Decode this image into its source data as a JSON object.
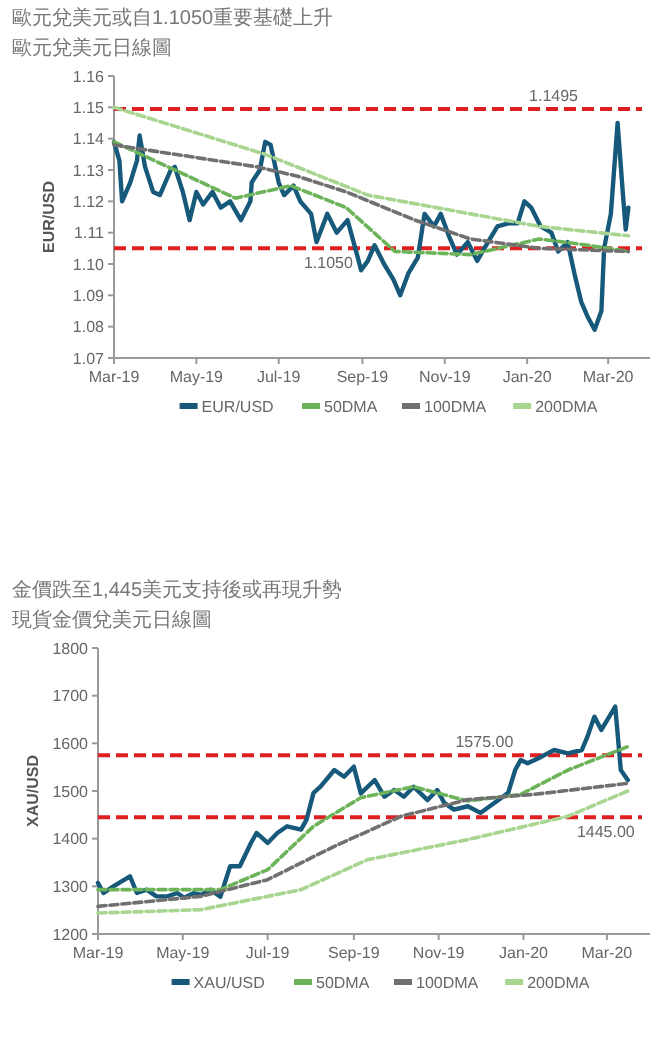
{
  "chart_data": [
    {
      "type": "line",
      "title": "歐元兌美元或自1.1050重要基礎上升",
      "subtitle": "歐元兌美元日線圖",
      "ylabel": "EUR/USD",
      "xlim": [
        "2019-03-01",
        "2020-04-01"
      ],
      "xticks": [
        {
          "value": "2019-03-01",
          "label": "Mar-19"
        },
        {
          "value": "2019-05-01",
          "label": "May-19"
        },
        {
          "value": "2019-07-01",
          "label": "Jul-19"
        },
        {
          "value": "2019-09-01",
          "label": "Sep-19"
        },
        {
          "value": "2019-11-01",
          "label": "Nov-19"
        },
        {
          "value": "2020-01-01",
          "label": "Jan-20"
        },
        {
          "value": "2020-03-01",
          "label": "Mar-20"
        }
      ],
      "ylim": [
        1.07,
        1.16
      ],
      "yticks": [
        {
          "value": 1.07,
          "label": "1.07"
        },
        {
          "value": 1.08,
          "label": "1.08"
        },
        {
          "value": 1.09,
          "label": "1.09"
        },
        {
          "value": 1.1,
          "label": "1.10"
        },
        {
          "value": 1.11,
          "label": "1.11"
        },
        {
          "value": 1.12,
          "label": "1.12"
        },
        {
          "value": 1.13,
          "label": "1.13"
        },
        {
          "value": 1.14,
          "label": "1.14"
        },
        {
          "value": 1.15,
          "label": "1.15"
        },
        {
          "value": 1.16,
          "label": "1.16"
        }
      ],
      "grid": false,
      "legend": "bottom",
      "ref_lines": [
        {
          "axis": "y",
          "value": 1.1495,
          "label": "1.1495",
          "color": "#e02020",
          "line_style": "dashed"
        },
        {
          "axis": "y",
          "value": 1.105,
          "label": "1.1050",
          "color": "#e02020",
          "line_style": "dashed"
        }
      ],
      "series": [
        {
          "name": "EUR/USD",
          "color": "#17597a",
          "line_style": "solid",
          "x": [
            "2019-03-01",
            "2019-03-05",
            "2019-03-07",
            "2019-03-13",
            "2019-03-18",
            "2019-03-20",
            "2019-03-24",
            "2019-03-30",
            "2019-04-04",
            "2019-04-12",
            "2019-04-15",
            "2019-04-21",
            "2019-04-26",
            "2019-05-01",
            "2019-05-06",
            "2019-05-13",
            "2019-05-19",
            "2019-05-26",
            "2019-06-03",
            "2019-06-10",
            "2019-06-11",
            "2019-06-17",
            "2019-06-21",
            "2019-06-25",
            "2019-07-01",
            "2019-07-05",
            "2019-07-12",
            "2019-07-17",
            "2019-07-25",
            "2019-07-29",
            "2019-08-06",
            "2019-08-13",
            "2019-08-21",
            "2019-08-28",
            "2019-08-31",
            "2019-09-05",
            "2019-09-10",
            "2019-09-17",
            "2019-09-24",
            "2019-09-29",
            "2019-10-05",
            "2019-10-12",
            "2019-10-17",
            "2019-10-24",
            "2019-10-29",
            "2019-11-04",
            "2019-11-10",
            "2019-11-18",
            "2019-11-25",
            "2019-12-03",
            "2019-12-10",
            "2019-12-18",
            "2019-12-25",
            "2019-12-30",
            "2020-01-04",
            "2020-01-11",
            "2020-01-19",
            "2020-01-24",
            "2020-01-31",
            "2020-02-05",
            "2020-02-10",
            "2020-02-15",
            "2020-02-20",
            "2020-02-25",
            "2020-02-27",
            "2020-03-03",
            "2020-03-08",
            "2020-03-12",
            "2020-03-14",
            "2020-03-16"
          ],
          "values": [
            1.139,
            1.133,
            1.12,
            1.126,
            1.133,
            1.141,
            1.131,
            1.123,
            1.122,
            1.13,
            1.131,
            1.123,
            1.114,
            1.123,
            1.119,
            1.123,
            1.118,
            1.12,
            1.114,
            1.12,
            1.126,
            1.13,
            1.139,
            1.138,
            1.126,
            1.122,
            1.125,
            1.12,
            1.116,
            1.107,
            1.116,
            1.11,
            1.114,
            1.103,
            1.098,
            1.101,
            1.106,
            1.1,
            1.095,
            1.09,
            1.097,
            1.102,
            1.116,
            1.112,
            1.116,
            1.109,
            1.103,
            1.107,
            1.101,
            1.107,
            1.112,
            1.113,
            1.113,
            1.12,
            1.118,
            1.112,
            1.11,
            1.104,
            1.107,
            1.097,
            1.088,
            1.083,
            1.079,
            1.085,
            1.105,
            1.116,
            1.145,
            1.122,
            1.111,
            1.118
          ]
        },
        {
          "name": "50DMA",
          "color": "#6db35a",
          "line_style": "dashed",
          "x": [
            "2019-03-01",
            "2019-05-30",
            "2019-07-10",
            "2019-08-20",
            "2019-09-25",
            "2019-11-20",
            "2020-01-10",
            "2020-02-15",
            "2020-03-16"
          ],
          "values": [
            1.139,
            1.121,
            1.125,
            1.118,
            1.104,
            1.103,
            1.108,
            1.106,
            1.104
          ]
        },
        {
          "name": "100DMA",
          "color": "#707070",
          "line_style": "dashed",
          "x": [
            "2019-03-01",
            "2019-06-15",
            "2019-07-15",
            "2019-08-20",
            "2019-10-10",
            "2019-11-20",
            "2020-01-10",
            "2020-03-16"
          ],
          "values": [
            1.138,
            1.131,
            1.128,
            1.123,
            1.114,
            1.108,
            1.105,
            1.104
          ]
        },
        {
          "name": "200DMA",
          "color": "#a8d590",
          "line_style": "dashed",
          "x": [
            "2019-03-01",
            "2019-06-21",
            "2019-09-05",
            "2019-11-20",
            "2020-01-10",
            "2020-03-16"
          ],
          "values": [
            1.15,
            1.135,
            1.122,
            1.116,
            1.112,
            1.109
          ]
        }
      ]
    },
    {
      "type": "line",
      "title": "金價跌至1,445美元支持後或再現升勢",
      "subtitle": "現貨金價兌美元日線圖",
      "ylabel": "XAU/USD",
      "xlim": [
        "2019-03-01",
        "2020-04-01"
      ],
      "xticks": [
        {
          "value": "2019-03-01",
          "label": "Mar-19"
        },
        {
          "value": "2019-05-01",
          "label": "May-19"
        },
        {
          "value": "2019-07-01",
          "label": "Jul-19"
        },
        {
          "value": "2019-09-01",
          "label": "Sep-19"
        },
        {
          "value": "2019-11-01",
          "label": "Nov-19"
        },
        {
          "value": "2020-01-01",
          "label": "Jan-20"
        },
        {
          "value": "2020-03-01",
          "label": "Mar-20"
        }
      ],
      "ylim": [
        1200,
        1800
      ],
      "yticks": [
        1200,
        1300,
        1400,
        1500,
        1600,
        1700,
        1800
      ],
      "grid": false,
      "legend": "bottom",
      "ref_lines": [
        {
          "axis": "y",
          "value": 1575,
          "label": "1575.00",
          "color": "#e02020",
          "line_style": "dashed"
        },
        {
          "axis": "y",
          "value": 1445,
          "label": "1445.00",
          "color": "#e02020",
          "line_style": "dashed"
        }
      ],
      "series": [
        {
          "name": "XAU/USD",
          "color": "#17597a",
          "line_style": "solid",
          "x": [
            "2019-03-01",
            "2019-03-05",
            "2019-03-12",
            "2019-03-24",
            "2019-03-29",
            "2019-04-05",
            "2019-04-12",
            "2019-04-20",
            "2019-04-27",
            "2019-05-02",
            "2019-05-09",
            "2019-05-14",
            "2019-05-21",
            "2019-05-28",
            "2019-06-04",
            "2019-06-11",
            "2019-06-19",
            "2019-06-23",
            "2019-07-01",
            "2019-07-08",
            "2019-07-15",
            "2019-07-25",
            "2019-07-29",
            "2019-08-03",
            "2019-08-08",
            "2019-08-18",
            "2019-08-25",
            "2019-09-01",
            "2019-09-06",
            "2019-09-16",
            "2019-09-23",
            "2019-09-30",
            "2019-10-07",
            "2019-10-14",
            "2019-10-24",
            "2019-10-31",
            "2019-11-05",
            "2019-11-12",
            "2019-11-22",
            "2019-12-01",
            "2019-12-11",
            "2019-12-21",
            "2019-12-26",
            "2019-12-30",
            "2020-01-04",
            "2020-01-14",
            "2020-01-23",
            "2020-02-02",
            "2020-02-12",
            "2020-02-16",
            "2020-02-21",
            "2020-02-26",
            "2020-03-07",
            "2020-03-11",
            "2020-03-16"
          ],
          "values": [
            1307,
            1286,
            1300,
            1321,
            1286,
            1293,
            1279,
            1279,
            1286,
            1276,
            1286,
            1282,
            1293,
            1278,
            1342,
            1342,
            1391,
            1412,
            1391,
            1412,
            1426,
            1419,
            1440,
            1496,
            1509,
            1544,
            1530,
            1551,
            1495,
            1523,
            1488,
            1502,
            1488,
            1509,
            1481,
            1502,
            1475,
            1461,
            1468,
            1454,
            1475,
            1496,
            1544,
            1565,
            1558,
            1572,
            1586,
            1579,
            1586,
            1614,
            1656,
            1628,
            1677,
            1544,
            1523
          ]
        },
        {
          "name": "50DMA",
          "color": "#6db35a",
          "line_style": "dashed",
          "x": [
            "2019-03-01",
            "2019-05-28",
            "2019-07-01",
            "2019-08-03",
            "2019-09-06",
            "2019-10-14",
            "2019-11-22",
            "2019-12-30",
            "2020-02-02",
            "2020-03-16"
          ],
          "values": [
            1293,
            1293,
            1335,
            1426,
            1486,
            1509,
            1479,
            1493,
            1544,
            1593
          ]
        },
        {
          "name": "100DMA",
          "color": "#707070",
          "line_style": "dashed",
          "x": [
            "2019-03-01",
            "2019-05-14",
            "2019-07-01",
            "2019-08-18",
            "2019-10-05",
            "2019-11-22",
            "2020-01-09",
            "2020-03-16"
          ],
          "values": [
            1258,
            1279,
            1314,
            1384,
            1447,
            1482,
            1493,
            1516
          ]
        },
        {
          "name": "200DMA",
          "color": "#a8d590",
          "line_style": "dashed",
          "x": [
            "2019-03-01",
            "2019-05-14",
            "2019-07-25",
            "2019-09-11",
            "2019-11-22",
            "2020-02-02",
            "2020-03-16"
          ],
          "values": [
            1244,
            1251,
            1293,
            1356,
            1398,
            1447,
            1500
          ]
        }
      ]
    }
  ]
}
